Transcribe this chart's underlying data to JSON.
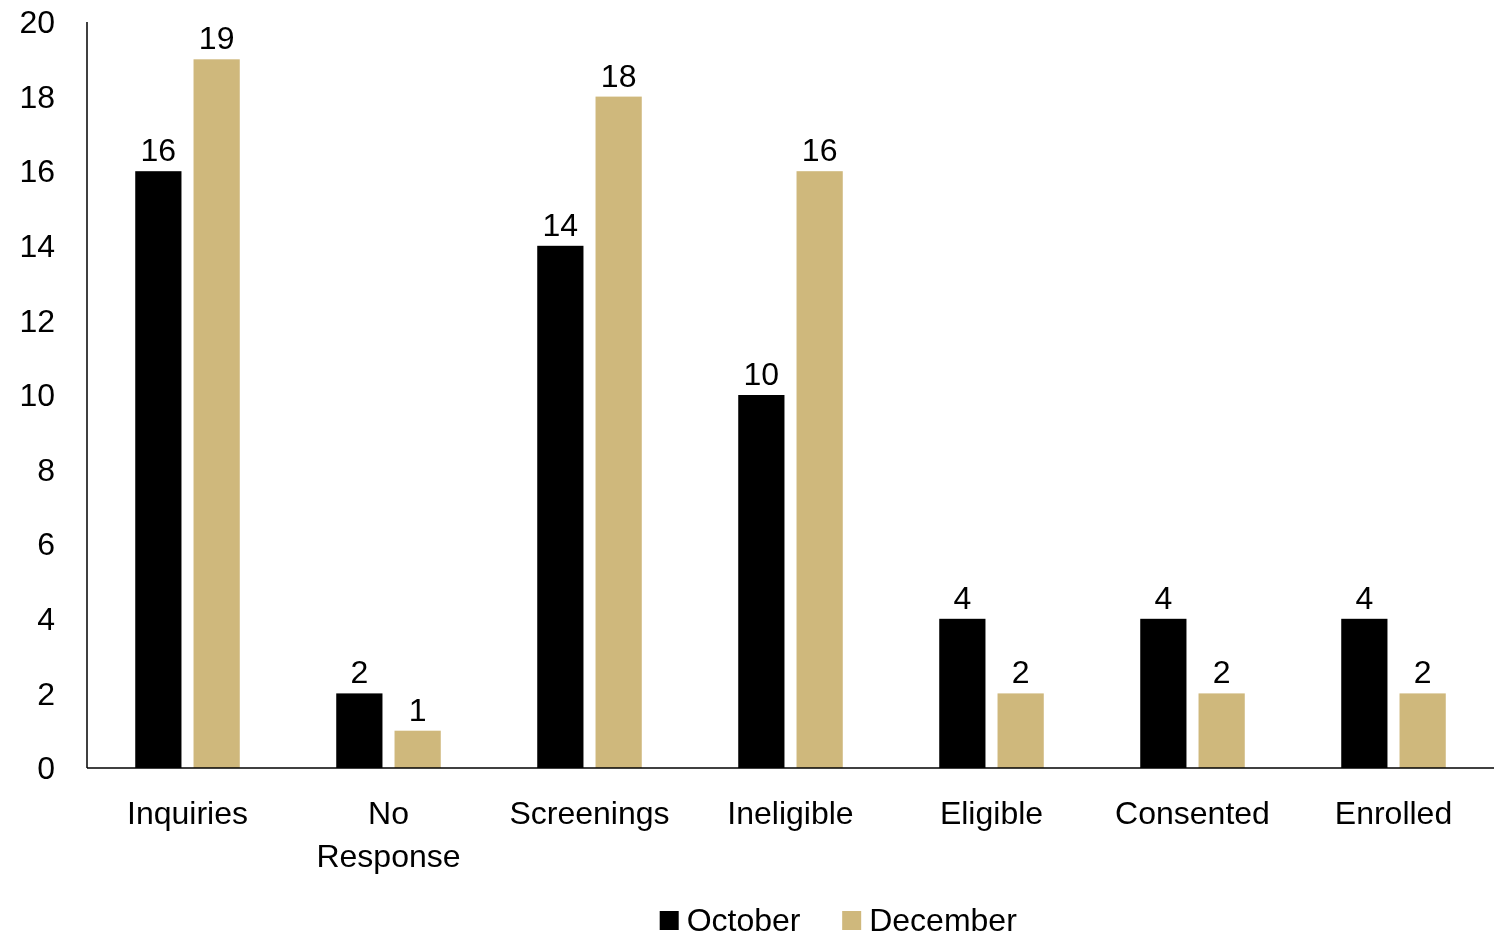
{
  "chart_data": {
    "type": "bar",
    "categories": [
      "Inquiries",
      "No Response",
      "Screenings",
      "Ineligible",
      "Eligible",
      "Consented",
      "Enrolled"
    ],
    "series": [
      {
        "name": "October",
        "color": "#000000",
        "values": [
          16,
          2,
          14,
          10,
          4,
          4,
          4
        ]
      },
      {
        "name": "December",
        "color": "#cfb87c",
        "values": [
          19,
          1,
          18,
          16,
          2,
          2,
          2
        ]
      }
    ],
    "ylim": [
      0,
      20
    ],
    "yticks": [
      0,
      2,
      4,
      6,
      8,
      10,
      12,
      14,
      16,
      18,
      20
    ],
    "grid": false,
    "legend": "bottom",
    "data_labels": true
  }
}
